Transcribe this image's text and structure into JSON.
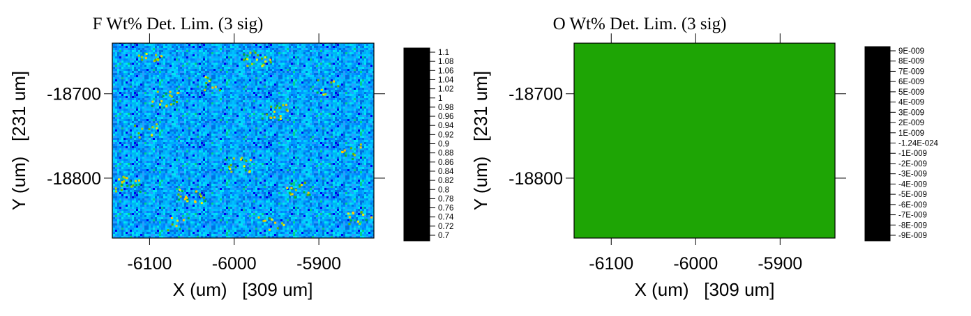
{
  "chart_data": [
    {
      "type": "heatmap",
      "title": "F Wt% Det. Lim. (3 sig)",
      "xlabel": "X (um)   [309 um]",
      "ylabel": "Y (um)   [231 um]",
      "xlim": [
        -6144,
        -5835
      ],
      "ylim": [
        -18871,
        -18640
      ],
      "xticks": [
        -6100,
        -6000,
        -5900
      ],
      "xtick_labels": [
        "-6100",
        "-6000",
        "-5900"
      ],
      "yticks": [
        -18700,
        -18800
      ],
      "ytick_labels": [
        "-18700",
        "-18800"
      ],
      "colorbar": {
        "min": 0.7,
        "max": 1.1,
        "labels": [
          "1.1",
          "1.08",
          "1.06",
          "1.04",
          "1.02",
          "1",
          "0.98",
          "0.96",
          "0.94",
          "0.92",
          "0.9",
          "0.88",
          "0.86",
          "0.84",
          "0.82",
          "0.8",
          "0.78",
          "0.76",
          "0.74",
          "0.72",
          "0.7"
        ]
      },
      "field": {
        "typical": 0.79,
        "range_low": 0.72,
        "range_high": 0.96,
        "description": "noisy map, mostly cyan/blue with sparse green-yellow speckles"
      }
    },
    {
      "type": "heatmap",
      "title": "O Wt% Det. Lim. (3 sig)",
      "xlabel": "X (um)   [309 um]",
      "ylabel": "Y (um)   [231 um]",
      "xlim": [
        -6144,
        -5835
      ],
      "ylim": [
        -18871,
        -18640
      ],
      "xticks": [
        -6100,
        -6000,
        -5900
      ],
      "xtick_labels": [
        "-6100",
        "-6000",
        "-5900"
      ],
      "yticks": [
        -18700,
        -18800
      ],
      "ytick_labels": [
        "-18700",
        "-18800"
      ],
      "colorbar": {
        "min": -1e-08,
        "max": 1e-08,
        "labels": [
          "9E-009",
          "8E-009",
          "7E-009",
          "6E-009",
          "5E-009",
          "4E-009",
          "3E-009",
          "2E-009",
          "1E-009",
          "-1.24E-024",
          "-1E-009",
          "-2E-009",
          "-3E-009",
          "-4E-009",
          "-5E-009",
          "-6E-009",
          "-7E-009",
          "-8E-009",
          "-9E-009"
        ]
      },
      "field": {
        "uniform_value": -1.24e-24,
        "fill_color": "#1ea505"
      }
    }
  ],
  "colors": {
    "palette": [
      "#000000",
      "#00008f",
      "#0000f0",
      "#0050ff",
      "#0096ff",
      "#00d2ff",
      "#00f0f0",
      "#00d28c",
      "#00b43c",
      "#1ea005",
      "#64b400",
      "#b4d200",
      "#f0f000",
      "#ffc800",
      "#ff8c00",
      "#ff3200",
      "#ff0000",
      "#ff5050",
      "#ff9696",
      "#ffd2d2",
      "#ffffff"
    ],
    "border": "#000000"
  }
}
